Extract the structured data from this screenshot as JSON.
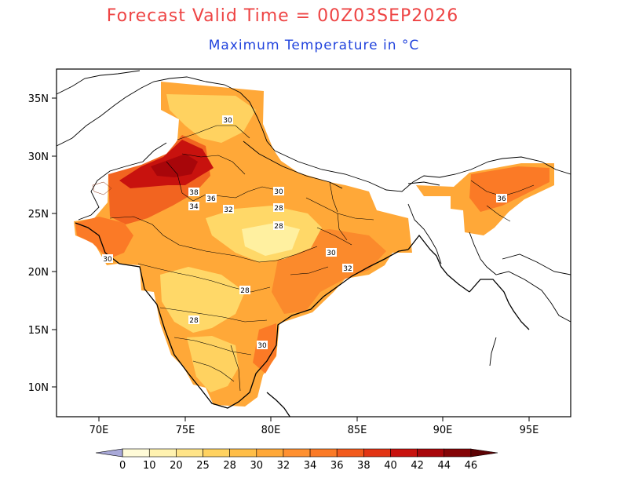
{
  "title": "Forecast Valid Time = 00Z03SEP2026",
  "subtitle": "Maximum Temperature in °C",
  "lon_ticks": [
    "70E",
    "75E",
    "80E",
    "85E",
    "90E",
    "95E"
  ],
  "lat_ticks": [
    "35N",
    "30N",
    "25N",
    "20N",
    "15N",
    "10N"
  ],
  "colorbar": {
    "labels": [
      "0",
      "10",
      "20",
      "25",
      "28",
      "30",
      "32",
      "34",
      "36",
      "38",
      "40",
      "42",
      "44",
      "46"
    ],
    "colors": [
      "#a8a8d8",
      "#fffbd8",
      "#fff2b0",
      "#ffe488",
      "#ffd260",
      "#ffbe48",
      "#ffa838",
      "#ff9030",
      "#fb7a26",
      "#f25a1c",
      "#e23414",
      "#c8120e",
      "#a8060a",
      "#840406",
      "#5c0204"
    ]
  },
  "contour_labels": [
    "30",
    "38",
    "36",
    "34",
    "32",
    "30",
    "28",
    "28",
    "36",
    "30",
    "30",
    "32",
    "28",
    "28",
    "30"
  ],
  "colors": {
    "title": "#ee4444",
    "subtitle": "#2244dd",
    "background_map": "#ffffff",
    "warm_light": "#ffd868",
    "warm_mid": "#ffa838",
    "hot": "#f26420",
    "very_hot": "#b01a0e"
  }
}
